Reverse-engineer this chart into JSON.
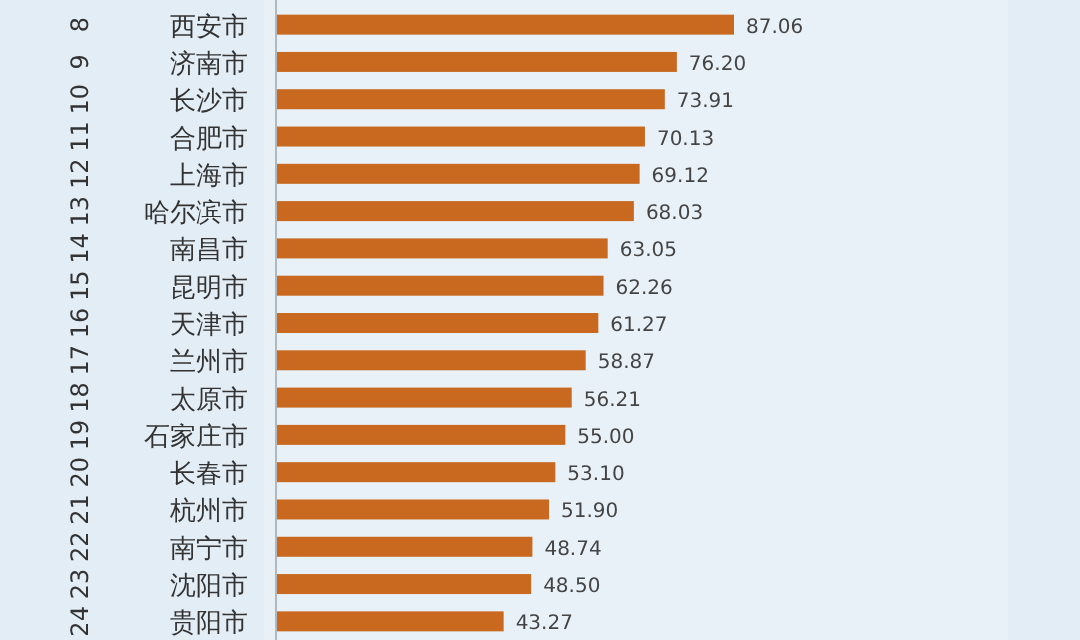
{
  "chart_data": {
    "type": "bar",
    "orientation": "horizontal",
    "categories": [
      "西安市",
      "济南市",
      "长沙市",
      "合肥市",
      "上海市",
      "哈尔滨市",
      "南昌市",
      "昆明市",
      "天津市",
      "兰州市",
      "太原市",
      "石家庄市",
      "长春市",
      "杭州市",
      "南宁市",
      "沈阳市",
      "贵阳市"
    ],
    "values": [
      87.06,
      76.2,
      73.91,
      70.13,
      69.12,
      68.03,
      63.05,
      62.26,
      61.27,
      58.87,
      56.21,
      55.0,
      53.1,
      51.9,
      48.74,
      48.5,
      43.27
    ],
    "value_labels": [
      "87.06",
      "76.20",
      "73.91",
      "70.13",
      "69.12",
      "68.03",
      "63.05",
      "62.26",
      "61.27",
      "58.87",
      "56.21",
      "55.00",
      "53.10",
      "51.90",
      "48.74",
      "48.50",
      "43.27"
    ],
    "color": "#c8691f",
    "annotations": [
      "8",
      "9",
      "10",
      "11",
      "12",
      "13",
      "14",
      "15",
      "16",
      "17",
      "18",
      "19",
      "20",
      "21",
      "22",
      "23",
      "24"
    ]
  }
}
